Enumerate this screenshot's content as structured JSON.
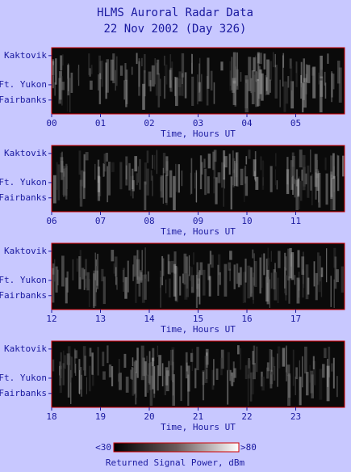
{
  "title": "HLMS Auroral Radar Data",
  "subtitle": "22 Nov 2002 (Day 326)",
  "chart_data": [
    {
      "type": "heatmap",
      "x_label": "Time, Hours UT",
      "xlim": [
        0,
        6
      ],
      "xticks": [
        {
          "value": 0,
          "label": "00"
        },
        {
          "value": 1,
          "label": "01"
        },
        {
          "value": 2,
          "label": "02"
        },
        {
          "value": 3,
          "label": "03"
        },
        {
          "value": 4,
          "label": "04"
        },
        {
          "value": 5,
          "label": "05"
        }
      ],
      "y_categories": [
        "Kaktovik",
        "Ft. Yukon",
        "Fairbanks"
      ]
    },
    {
      "type": "heatmap",
      "x_label": "Time, Hours UT",
      "xlim": [
        6,
        12
      ],
      "xticks": [
        {
          "value": 6,
          "label": "06"
        },
        {
          "value": 7,
          "label": "07"
        },
        {
          "value": 8,
          "label": "08"
        },
        {
          "value": 9,
          "label": "09"
        },
        10,
        11
      ],
      "y_categories": [
        "Kaktovik",
        "Ft. Yukon",
        "Fairbanks"
      ]
    },
    {
      "type": "heatmap",
      "x_label": "Time, Hours UT",
      "xlim": [
        12,
        18
      ],
      "xticks": [
        12,
        13,
        14,
        15,
        16,
        17
      ],
      "y_categories": [
        "Kaktovik",
        "Ft. Yukon",
        "Fairbanks"
      ]
    },
    {
      "type": "heatmap",
      "x_label": "Time, Hours UT",
      "xlim": [
        18,
        24
      ],
      "xticks": [
        18,
        19,
        20,
        21,
        22,
        23
      ],
      "y_categories": [
        "Kaktovik",
        "Ft. Yukon",
        "Fairbanks"
      ]
    }
  ],
  "colorbar": {
    "ticks": [
      {
        "value": 30,
        "label": "<30"
      },
      {
        "value": 80,
        "label": ">80"
      }
    ],
    "label": "Returned Signal Power, dBm"
  }
}
